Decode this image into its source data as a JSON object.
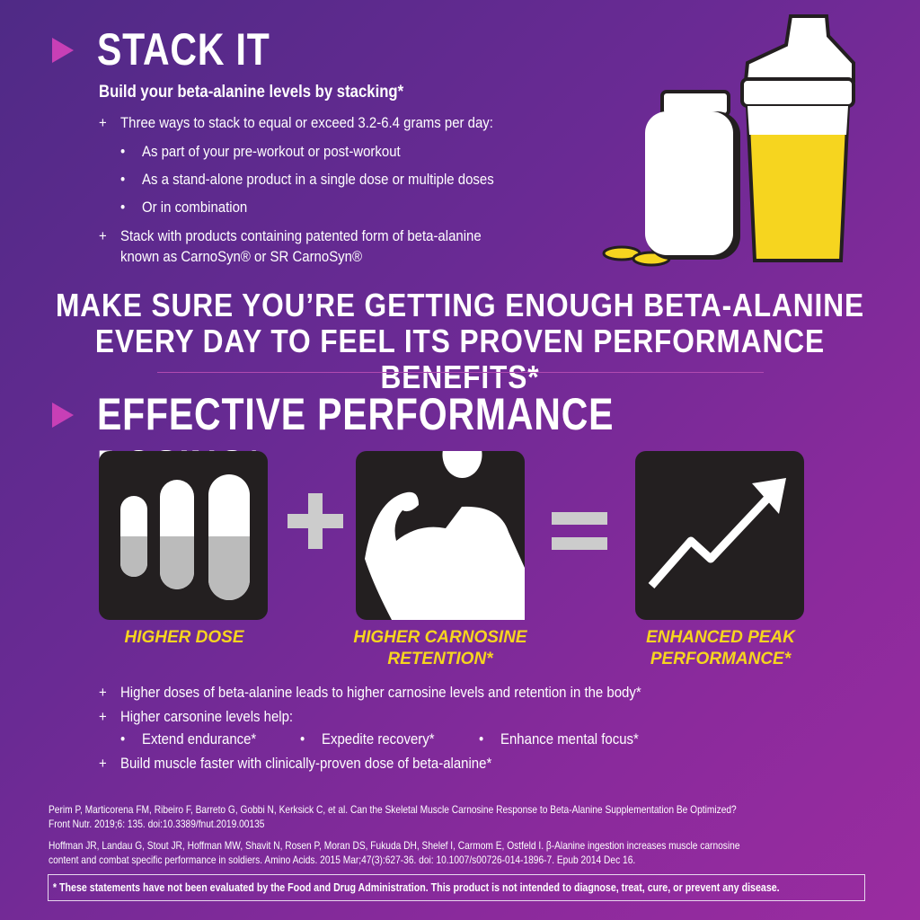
{
  "stack": {
    "title": "STACK IT",
    "subtitle": "Build your beta-alanine levels by stacking*",
    "items": [
      "+",
      "Three ways to stack to equal or exceed 3.2-6.4 grams per day:"
    ],
    "bullets": [
      "As part of your pre-workout or post-workout",
      "As a stand-alone product in a single dose or multiple doses",
      "Or in combination"
    ],
    "item2": [
      "Stack with products containing patented form of beta-alanine",
      "known as CarnoSyn® or SR CarnoSyn®"
    ]
  },
  "banner": [
    "MAKE SURE YOU’RE GETTING ENOUGH BETA-ALANINE",
    "EVERY DAY TO FEEL ITS PROVEN PERFORMANCE BENEFITS*"
  ],
  "dosing": {
    "title": "EFFECTIVE PERFORMANCE DOSING*",
    "captions": [
      "HIGHER DOSE",
      "HIGHER CARNOSINE RETENTION*",
      "ENHANCED PEAK PERFORMANCE*"
    ],
    "points": [
      "Higher doses of beta-alanine leads to higher carnosine levels and retention in the body*",
      "Higher carsonine levels help:",
      "Build muscle faster with clinically-proven dose of beta-alanine*"
    ],
    "benefits": [
      "Extend endurance*",
      "Expedite recovery*",
      "Enhance mental focus*"
    ]
  },
  "references": [
    "Perim P, Marticorena FM, Ribeiro F, Barreto G, Gobbi N, Kerksick C, et al. Can the Skeletal Muscle Carnosine Response to Beta-Alanine Supplementation Be Optimized?",
    "Front Nutr. 2019;6: 135. doi:10.3389/fnut.2019.00135",
    "Hoffman JR, Landau G, Stout JR, Hoffman MW, Shavit N, Rosen P, Moran DS, Fukuda DH, Shelef I, Carmom E, Ostfeld I. β-Alanine ingestion increases muscle carnosine",
    "content and combat specific performance in soldiers. Amino Acids. 2015 Mar;47(3):627-36. doi: 10.1007/s00726-014-1896-7. Epub 2014 Dec 16."
  ],
  "disclaimer": "* These statements have not been evaluated by the Food and Drug Administration. This product is not intended to diagnose, treat, cure, or prevent any disease.",
  "colors": {
    "accent": "#f6d51f",
    "triangle": "#c83fb6",
    "icon_bg": "#231f20"
  }
}
